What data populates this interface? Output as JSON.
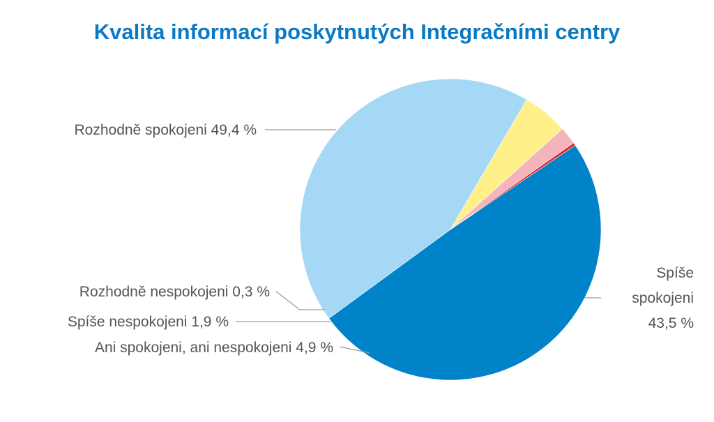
{
  "chart_data": {
    "type": "pie",
    "title": "Kvalita informací poskytnutých Integračními centry",
    "slices": [
      {
        "label": "Rozhodně spokojeni 49,4 %",
        "value": 49.4,
        "color": "#0083c9"
      },
      {
        "label": [
          "Spíše",
          "spokojeni",
          "43,5 %"
        ],
        "value": 43.5,
        "color": "#a5d8f5"
      },
      {
        "label": "Ani spokojeni, ani nespokojeni 4,9 %",
        "value": 4.9,
        "color": "#fff089"
      },
      {
        "label": "Spíše nespokojeni 1,9 %",
        "value": 1.9,
        "color": "#f4b4bb"
      },
      {
        "label": "Rozhodně nespokojeni 0,3 %",
        "value": 0.3,
        "color": "#e3202b"
      }
    ],
    "start_angle_deg": 56,
    "direction": "clockwise",
    "legend": "none"
  }
}
